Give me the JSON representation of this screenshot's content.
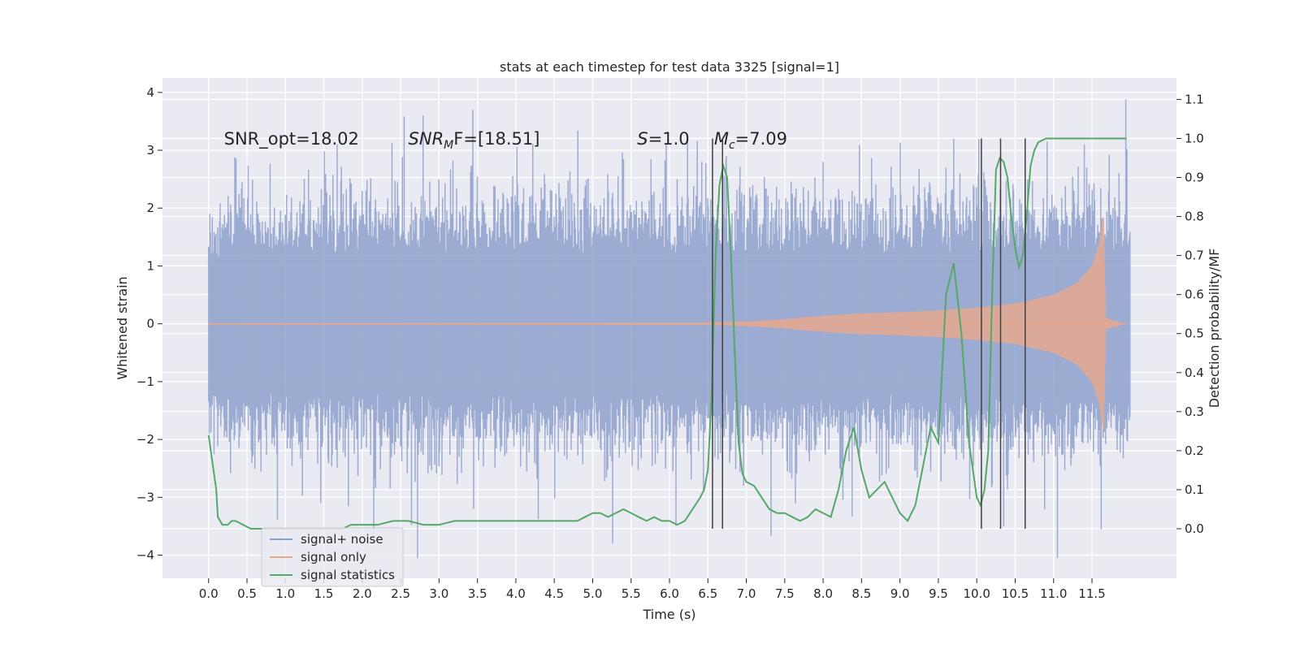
{
  "chart_data": {
    "type": "line",
    "title": "stats at each timestep for test data 3325 [signal=1]",
    "xlabel": "Time (s)",
    "ylabel": "Whitened strain",
    "y2label": "Detection probability/MF",
    "xlim": [
      -0.6,
      12.6
    ],
    "ylim": [
      -4.4,
      4.25
    ],
    "y2lim": [
      -0.127,
      1.155
    ],
    "xticks": [
      0.0,
      0.5,
      1.0,
      1.5,
      2.0,
      2.5,
      3.0,
      3.5,
      4.0,
      4.5,
      5.0,
      5.5,
      6.0,
      6.5,
      7.0,
      7.5,
      8.0,
      8.5,
      9.0,
      9.5,
      10.0,
      10.5,
      11.0,
      11.5
    ],
    "xtick_labels": [
      "0.0",
      "0.5",
      "1.0",
      "1.5",
      "2.0",
      "2.5",
      "3.0",
      "3.5",
      "4.0",
      "4.5",
      "5.0",
      "5.5",
      "6.0",
      "6.5",
      "7.0",
      "7.5",
      "8.0",
      "8.5",
      "9.0",
      "9.5",
      "10.0",
      "10.5",
      "11.0",
      "11.5"
    ],
    "yticks": [
      -4,
      -3,
      -2,
      -1,
      0,
      1,
      2,
      3,
      4
    ],
    "ytick_labels": [
      "−4",
      "−3",
      "−2",
      "−1",
      "0",
      "1",
      "2",
      "3",
      "4"
    ],
    "y2ticks": [
      0.0,
      0.1,
      0.2,
      0.3,
      0.4,
      0.5,
      0.6,
      0.7,
      0.8,
      0.9,
      1.0,
      1.1
    ],
    "y2tick_labels": [
      "0.0",
      "0.1",
      "0.2",
      "0.3",
      "0.4",
      "0.5",
      "0.6",
      "0.7",
      "0.8",
      "0.9",
      "1.0",
      "1.1"
    ],
    "grid": true,
    "legend_position": "lower-left",
    "legend": [
      {
        "label": "signal+ noise",
        "color": "#8da0cb"
      },
      {
        "label": "signal only",
        "color": "#e5a88f"
      },
      {
        "label": "signal statistics",
        "color": "#55a868"
      }
    ],
    "annotations": [
      {
        "id": "snr-opt",
        "x": 0.2,
        "y": 3.1,
        "text": "SNR_opt=18.02"
      },
      {
        "id": "snr-mf",
        "x": 2.6,
        "y": 3.1,
        "prefix": "SNR",
        "sub": "M",
        "suffix": "F=[18.51]"
      },
      {
        "id": "s-value",
        "x": 5.58,
        "y": 3.1,
        "prefix": "S",
        "suffix": "=1.0"
      },
      {
        "id": "mc-value",
        "x": 6.58,
        "y": 3.1,
        "prefix": "M",
        "sub": "c",
        "suffix": "=7.09"
      }
    ],
    "vertical_lines": {
      "color": "#404040",
      "ymin": -0.0,
      "ymax": 1.0,
      "axis": "y2",
      "x": [
        6.56,
        6.69,
        10.06,
        10.31,
        10.63
      ]
    },
    "series": [
      {
        "name": "signal+ noise",
        "axis": "y",
        "style": "noise-band",
        "x_start": 0.0,
        "x_end": 12.0,
        "envelope": [
          [
            0.0,
            1.3
          ],
          [
            0.2,
            1.6
          ],
          [
            1.0,
            1.55
          ],
          [
            3.0,
            1.6
          ],
          [
            6.0,
            1.6
          ],
          [
            9.0,
            1.6
          ],
          [
            11.8,
            1.6
          ],
          [
            12.0,
            1.5
          ]
        ],
        "peaks": [
          [
            1.82,
            -3.15
          ],
          [
            2.05,
            2.3
          ],
          [
            2.72,
            -4.05
          ],
          [
            3.44,
            3.7
          ],
          [
            3.45,
            -3.2
          ],
          [
            5.26,
            -3.8
          ],
          [
            6.42,
            2.8
          ],
          [
            6.74,
            2.9
          ],
          [
            8.0,
            2.8
          ],
          [
            9.6,
            2.7
          ],
          [
            9.7,
            3.2
          ],
          [
            10.35,
            -3.5
          ],
          [
            11.05,
            -4.05
          ],
          [
            11.4,
            3.1
          ],
          [
            11.62,
            -3.55
          ],
          [
            11.94,
            3.88
          ]
        ],
        "color": "#8da0cb"
      },
      {
        "name": "signal only",
        "axis": "y",
        "style": "chirp",
        "envelope": [
          [
            0.0,
            0.01
          ],
          [
            6.5,
            0.02
          ],
          [
            7.0,
            0.04
          ],
          [
            7.5,
            0.08
          ],
          [
            8.0,
            0.14
          ],
          [
            8.5,
            0.18
          ],
          [
            9.0,
            0.2
          ],
          [
            9.5,
            0.23
          ],
          [
            10.0,
            0.28
          ],
          [
            10.5,
            0.35
          ],
          [
            11.0,
            0.5
          ],
          [
            11.3,
            0.7
          ],
          [
            11.5,
            1.0
          ],
          [
            11.6,
            1.4
          ],
          [
            11.65,
            1.9
          ],
          [
            11.68,
            0.1
          ],
          [
            11.9,
            0.01
          ]
        ],
        "color": "#e5a88f"
      },
      {
        "name": "signal statistics",
        "axis": "y2",
        "style": "line",
        "x": [
          0.0,
          0.1,
          0.12,
          0.18,
          0.25,
          0.3,
          0.35,
          0.45,
          0.55,
          0.7,
          0.85,
          1.0,
          1.2,
          1.4,
          1.6,
          1.75,
          1.85,
          2.0,
          2.2,
          2.4,
          2.6,
          2.8,
          3.0,
          3.2,
          3.4,
          3.6,
          3.8,
          4.0,
          4.2,
          4.4,
          4.6,
          4.8,
          4.9,
          5.0,
          5.1,
          5.2,
          5.3,
          5.4,
          5.5,
          5.6,
          5.7,
          5.8,
          5.9,
          6.0,
          6.1,
          6.2,
          6.3,
          6.4,
          6.45,
          6.5,
          6.55,
          6.6,
          6.65,
          6.7,
          6.75,
          6.8,
          6.85,
          6.9,
          6.95,
          7.0,
          7.1,
          7.2,
          7.3,
          7.4,
          7.5,
          7.6,
          7.7,
          7.8,
          7.9,
          8.0,
          8.1,
          8.2,
          8.3,
          8.4,
          8.5,
          8.6,
          8.7,
          8.8,
          8.9,
          9.0,
          9.1,
          9.2,
          9.3,
          9.4,
          9.5,
          9.6,
          9.7,
          9.8,
          9.9,
          10.0,
          10.05,
          10.1,
          10.15,
          10.2,
          10.25,
          10.3,
          10.35,
          10.4,
          10.45,
          10.5,
          10.55,
          10.6,
          10.65,
          10.7,
          10.75,
          10.8,
          10.9,
          11.0,
          11.2,
          11.4,
          11.6,
          11.8,
          11.95
        ],
        "values": [
          0.24,
          0.1,
          0.03,
          0.01,
          0.01,
          0.02,
          0.02,
          0.01,
          0.0,
          0.0,
          0.0,
          0.0,
          0.0,
          0.0,
          0.0,
          0.0,
          0.01,
          0.01,
          0.01,
          0.02,
          0.02,
          0.01,
          0.01,
          0.02,
          0.02,
          0.02,
          0.02,
          0.02,
          0.02,
          0.02,
          0.02,
          0.02,
          0.03,
          0.04,
          0.04,
          0.03,
          0.04,
          0.05,
          0.04,
          0.03,
          0.02,
          0.03,
          0.02,
          0.02,
          0.01,
          0.02,
          0.05,
          0.08,
          0.1,
          0.15,
          0.35,
          0.7,
          0.88,
          0.93,
          0.9,
          0.7,
          0.45,
          0.22,
          0.14,
          0.12,
          0.11,
          0.08,
          0.05,
          0.04,
          0.04,
          0.03,
          0.02,
          0.03,
          0.05,
          0.04,
          0.03,
          0.1,
          0.2,
          0.26,
          0.15,
          0.08,
          0.1,
          0.12,
          0.08,
          0.04,
          0.02,
          0.06,
          0.16,
          0.26,
          0.22,
          0.6,
          0.68,
          0.5,
          0.22,
          0.08,
          0.06,
          0.1,
          0.2,
          0.6,
          0.92,
          0.95,
          0.94,
          0.9,
          0.8,
          0.72,
          0.67,
          0.7,
          0.8,
          0.93,
          0.97,
          0.99,
          1.0,
          1.0,
          1.0,
          1.0,
          1.0,
          1.0,
          1.0
        ],
        "color": "#55a868"
      }
    ]
  }
}
